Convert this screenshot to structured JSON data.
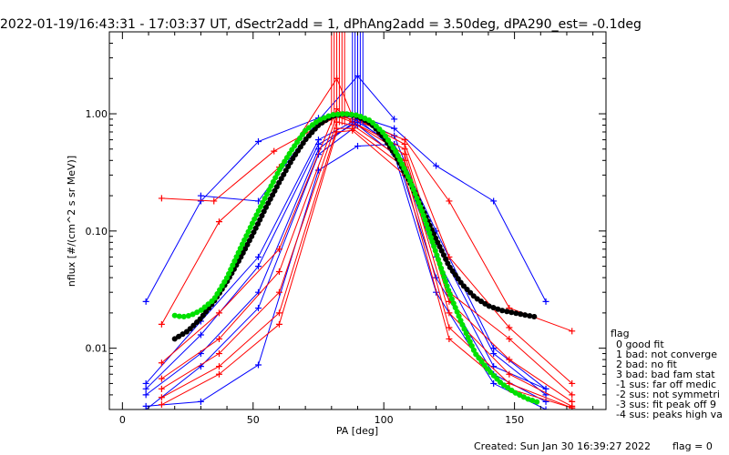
{
  "chart_data": {
    "type": "line",
    "title": "2022-01-19/16:43:31 - 17:03:37 UT, dSectr2add = 1, dPhAng2add = 3.50deg, dPA290_est=  -0.1deg",
    "xlabel": "PA [deg]",
    "ylabel": "nflux [#/(cm^2 s sr MeV)]",
    "xlim": [
      -5,
      185
    ],
    "ylim": [
      0.003,
      5
    ],
    "yscale": "log",
    "x_ticks": [
      0,
      50,
      100,
      150
    ],
    "x_tick_labels": [
      "0",
      "50",
      "100",
      "150"
    ],
    "y_ticks": [
      0.01,
      0.1,
      1.0
    ],
    "y_tick_labels": [
      "0.01",
      "0.10",
      "1.00"
    ],
    "legend": {
      "title": "flag",
      "placement": "right",
      "entries": [
        " 0 good fit",
        " 1 bad: not converge",
        " 2 bad: no fit",
        " 3 bad: bad fam stat",
        "-1 sus: far off medic",
        "-2 sus: not symmetri",
        "-3 sus: fit peak off 9",
        "-4 sus: peaks high va"
      ]
    },
    "footer_created": "Created: Sun Jan 30 16:39:27 2022",
    "footer_flag": "flag = 0",
    "colors": {
      "red": "#ff0000",
      "blue": "#0000ff",
      "green": "#00e000",
      "black": "#000000"
    },
    "series": [
      {
        "color": "blue",
        "x": [
          9,
          30,
          52,
          75,
          90,
          104,
          120,
          142,
          162
        ],
        "y": [
          0.025,
          0.18,
          0.58,
          0.92,
          0.95,
          0.75,
          0.36,
          0.18,
          0.025
        ]
      },
      {
        "color": "blue",
        "x": [
          9,
          30,
          52,
          75,
          90,
          104,
          120,
          142,
          162
        ],
        "y": [
          0.005,
          0.017,
          0.06,
          0.6,
          0.9,
          0.65,
          0.08,
          0.009,
          0.004
        ]
      },
      {
        "color": "blue",
        "x": [
          9,
          30,
          52,
          75,
          90,
          104,
          120,
          142,
          162
        ],
        "y": [
          0.0045,
          0.013,
          0.05,
          0.55,
          0.85,
          0.55,
          0.06,
          0.007,
          0.0045
        ]
      },
      {
        "color": "blue",
        "x": [
          9,
          30,
          52,
          75,
          90,
          104,
          120,
          142,
          162
        ],
        "y": [
          0.004,
          0.009,
          0.03,
          0.5,
          0.9,
          0.5,
          0.04,
          0.006,
          0.0035
        ]
      },
      {
        "color": "blue",
        "x": [
          9,
          30,
          52,
          75,
          90,
          104,
          120,
          142,
          162
        ],
        "y": [
          0.003,
          0.007,
          0.022,
          0.45,
          0.8,
          0.45,
          0.03,
          0.005,
          0.003
        ]
      },
      {
        "color": "blue",
        "x": [
          9,
          30,
          52,
          75,
          90,
          104,
          120,
          142,
          162
        ],
        "y": [
          0.0032,
          0.0035,
          0.0072,
          0.33,
          0.53,
          0.55,
          0.1,
          0.01,
          0.0045
        ]
      },
      {
        "color": "blue",
        "x": [
          30,
          52,
          75,
          90,
          104
        ],
        "y": [
          0.2,
          0.18,
          0.88,
          2.1,
          0.9
        ]
      },
      {
        "color": "red",
        "x": [
          15,
          35,
          58,
          82,
          88,
          108,
          125,
          148,
          172
        ],
        "y": [
          0.19,
          0.18,
          0.48,
          0.95,
          0.9,
          0.6,
          0.18,
          0.022,
          0.014
        ]
      },
      {
        "color": "red",
        "x": [
          15,
          37,
          60,
          82,
          88,
          108,
          125,
          148,
          172
        ],
        "y": [
          0.016,
          0.12,
          0.35,
          2.0,
          0.95,
          0.55,
          0.06,
          0.015,
          0.005
        ]
      },
      {
        "color": "red",
        "x": [
          15,
          37,
          60,
          82,
          88,
          108,
          125,
          148,
          172
        ],
        "y": [
          0.0075,
          0.02,
          0.07,
          1.1,
          0.85,
          0.5,
          0.03,
          0.012,
          0.004
        ]
      },
      {
        "color": "red",
        "x": [
          15,
          37,
          60,
          82,
          88,
          108,
          125,
          148,
          172
        ],
        "y": [
          0.0055,
          0.012,
          0.045,
          0.95,
          0.85,
          0.45,
          0.025,
          0.008,
          0.0035
        ]
      },
      {
        "color": "red",
        "x": [
          15,
          37,
          60,
          82,
          88,
          108,
          125,
          148,
          172
        ],
        "y": [
          0.0045,
          0.009,
          0.03,
          0.85,
          0.8,
          0.4,
          0.02,
          0.006,
          0.0032
        ]
      },
      {
        "color": "red",
        "x": [
          15,
          37,
          60,
          82,
          88,
          108,
          125,
          148,
          172
        ],
        "y": [
          0.0038,
          0.007,
          0.02,
          0.75,
          0.75,
          0.35,
          0.015,
          0.005,
          0.0031
        ]
      },
      {
        "color": "red",
        "x": [
          15,
          37,
          60,
          82,
          88,
          108,
          125,
          148,
          172
        ],
        "y": [
          0.0033,
          0.006,
          0.016,
          0.7,
          0.72,
          0.3,
          0.012,
          0.0045,
          0.0031
        ]
      }
    ],
    "spikes": [
      {
        "color": "red",
        "x": [
          80,
          81,
          82,
          83,
          84,
          85
        ]
      },
      {
        "color": "blue",
        "x": [
          88,
          89,
          90,
          91,
          92
        ]
      }
    ],
    "fits": [
      {
        "color": "black",
        "x": [
          20,
          25,
          30,
          35,
          40,
          45,
          50,
          55,
          60,
          65,
          70,
          75,
          80,
          85,
          90,
          95,
          100,
          105,
          110,
          115,
          120,
          125,
          130,
          135,
          140,
          145,
          150,
          155,
          158
        ],
        "y": [
          0.012,
          0.014,
          0.018,
          0.025,
          0.037,
          0.058,
          0.095,
          0.16,
          0.26,
          0.41,
          0.6,
          0.8,
          0.95,
          1.0,
          0.95,
          0.83,
          0.63,
          0.42,
          0.26,
          0.15,
          0.085,
          0.05,
          0.035,
          0.027,
          0.023,
          0.021,
          0.02,
          0.019,
          0.0185
        ]
      },
      {
        "color": "green",
        "x": [
          20,
          23,
          26,
          30,
          35,
          40,
          45,
          50,
          55,
          60,
          65,
          70,
          75,
          80,
          85,
          90,
          95,
          100,
          105,
          110,
          115,
          120,
          125,
          130,
          135,
          140,
          145,
          150,
          155,
          160
        ],
        "y": [
          0.019,
          0.0185,
          0.019,
          0.021,
          0.026,
          0.04,
          0.07,
          0.12,
          0.2,
          0.33,
          0.5,
          0.72,
          0.88,
          0.98,
          1.0,
          0.97,
          0.87,
          0.68,
          0.46,
          0.27,
          0.14,
          0.065,
          0.03,
          0.016,
          0.009,
          0.0065,
          0.005,
          0.0042,
          0.0037,
          0.0034
        ]
      }
    ]
  }
}
